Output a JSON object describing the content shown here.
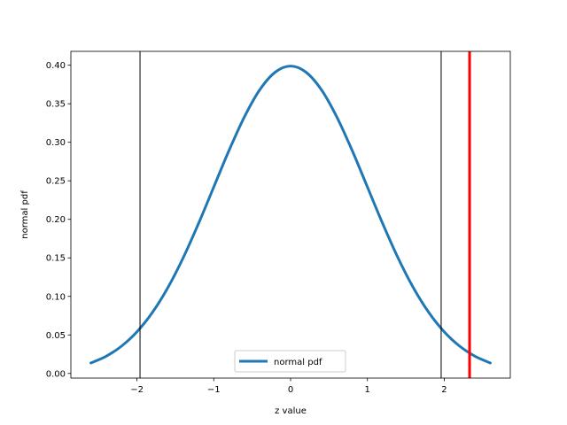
{
  "chart_data": {
    "type": "line",
    "title": "",
    "xlabel": "z value",
    "ylabel": "normal pdf",
    "xlim": [
      -2.86,
      2.86
    ],
    "ylim": [
      -0.006,
      0.418
    ],
    "x_ticks": [
      -2,
      -1,
      0,
      1,
      2
    ],
    "x_tick_labels": [
      "−2",
      "−1",
      "0",
      "1",
      "2"
    ],
    "y_ticks": [
      0.0,
      0.05,
      0.1,
      0.15,
      0.2,
      0.25,
      0.3,
      0.35,
      0.4
    ],
    "y_tick_labels": [
      "0.00",
      "0.05",
      "0.10",
      "0.15",
      "0.20",
      "0.25",
      "0.30",
      "0.35",
      "0.40"
    ],
    "grid": false,
    "legend_position": "bottom-center",
    "series": [
      {
        "name": "normal pdf",
        "color": "#1f77b4",
        "x": [
          -2.6,
          -2.4,
          -2.2,
          -2.0,
          -1.8,
          -1.6,
          -1.4,
          -1.2,
          -1.0,
          -0.8,
          -0.6,
          -0.4,
          -0.2,
          0.0,
          0.2,
          0.4,
          0.6,
          0.8,
          1.0,
          1.2,
          1.4,
          1.6,
          1.8,
          2.0,
          2.2,
          2.4,
          2.6
        ],
        "y": [
          0.0136,
          0.0224,
          0.0355,
          0.054,
          0.079,
          0.1109,
          0.1497,
          0.1942,
          0.242,
          0.2897,
          0.3332,
          0.3683,
          0.391,
          0.3989,
          0.391,
          0.3683,
          0.3332,
          0.2897,
          0.242,
          0.1942,
          0.1497,
          0.1109,
          0.079,
          0.054,
          0.0355,
          0.0224,
          0.0136
        ]
      }
    ],
    "vertical_lines": [
      {
        "x": -1.96,
        "color": "#000000"
      },
      {
        "x": 1.96,
        "color": "#000000"
      },
      {
        "x": 2.33,
        "color": "#ff0000"
      }
    ]
  }
}
